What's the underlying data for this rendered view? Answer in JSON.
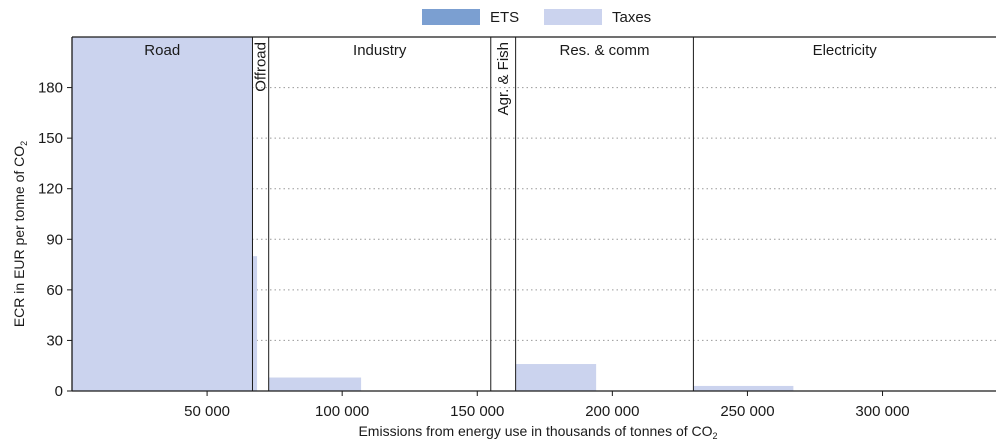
{
  "chart_data": {
    "type": "bar",
    "legend": [
      {
        "name": "ETS",
        "color": "#7b9fd1"
      },
      {
        "name": "Taxes",
        "color": "#cbd3ee"
      }
    ],
    "xlabel": "Emissions from energy use in thousands of tonnes of CO",
    "xlabel_subscript": "2",
    "ylabel": "ECR in EUR per tonne of CO",
    "ylabel_subscript": "2",
    "xlim": [
      0,
      342000
    ],
    "ylim": [
      0,
      210
    ],
    "x_ticks": [
      50000,
      100000,
      150000,
      200000,
      250000,
      300000
    ],
    "x_tick_labels": [
      "50 000",
      "100 000",
      "150 000",
      "200 000",
      "250 000",
      "300 000"
    ],
    "y_ticks": [
      0,
      30,
      60,
      90,
      120,
      150,
      180
    ],
    "y_tick_labels": [
      "0",
      "30",
      "60",
      "90",
      "120",
      "150",
      "180"
    ],
    "grid": "horizontal-dotted",
    "sectors": [
      {
        "name": "Road",
        "start": 0,
        "end": 66800,
        "rotated": false
      },
      {
        "name": "Offroad",
        "start": 66800,
        "end": 72800,
        "rotated": true
      },
      {
        "name": "Industry",
        "start": 72800,
        "end": 155000,
        "rotated": false
      },
      {
        "name": "Agr. & Fish",
        "start": 155000,
        "end": 164200,
        "rotated": true
      },
      {
        "name": "Res. & comm",
        "start": 164200,
        "end": 230000,
        "rotated": false
      },
      {
        "name": "Electricity",
        "start": 230000,
        "end": 342000,
        "rotated": false
      }
    ],
    "series": [
      {
        "name": "Taxes",
        "bars": [
          {
            "x0": 0,
            "x1": 66800,
            "value": 210
          },
          {
            "x0": 66800,
            "x1": 68500,
            "value": 80
          },
          {
            "x0": 72800,
            "x1": 107000,
            "value": 8
          },
          {
            "x0": 164200,
            "x1": 194000,
            "value": 16
          },
          {
            "x0": 230000,
            "x1": 267000,
            "value": 3
          }
        ]
      },
      {
        "name": "ETS",
        "bars": []
      }
    ]
  }
}
